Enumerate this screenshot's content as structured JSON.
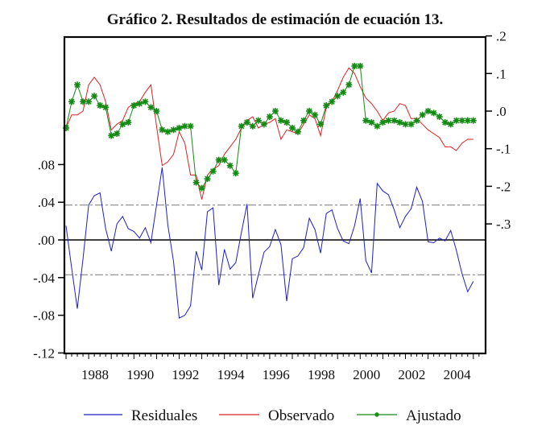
{
  "chart_data": {
    "type": "line",
    "title": "Gráfico 2. Resultados de estimación de ecuación 13.",
    "xlabel": "",
    "frequency": "quarterly",
    "start": "1987Q1",
    "x_ticks": [
      "1988",
      "1990",
      "1992",
      "1994",
      "1996",
      "1998",
      "2000",
      "2002",
      "2004"
    ],
    "left_axis": {
      "label": "",
      "range": [
        -0.12,
        0.11
      ],
      "ticks": [
        ".08",
        ".04",
        ".00",
        "-.04",
        "-.08",
        "-.12"
      ],
      "tick_values": [
        0.08,
        0.04,
        0.0,
        -0.04,
        -0.08,
        -0.12
      ],
      "reference_lines": [
        {
          "value": 0.0,
          "style": "solid"
        },
        {
          "value": 0.037,
          "style": "dashed"
        },
        {
          "value": -0.037,
          "style": "dashed"
        }
      ]
    },
    "right_axis": {
      "label": "",
      "range": [
        -0.32,
        0.2
      ],
      "ticks": [
        ".2",
        ".1",
        ".0",
        "-.1",
        "-.2",
        "-.3"
      ],
      "tick_values": [
        0.2,
        0.1,
        0.0,
        -0.1,
        -0.2,
        -0.3
      ]
    },
    "legend": {
      "placement": "bottom",
      "entries": [
        "Residuales",
        "Observado",
        "Ajustado"
      ]
    },
    "series": [
      {
        "name": "Residuales",
        "axis": "left",
        "color": "#1f1fc8",
        "marker": "none",
        "values": [
          0.015,
          -0.03,
          -0.073,
          -0.02,
          0.037,
          0.047,
          0.05,
          0.012,
          -0.012,
          0.017,
          0.025,
          0.012,
          0.009,
          0.002,
          0.013,
          -0.003,
          0.037,
          0.077,
          0.016,
          -0.023,
          -0.083,
          -0.08,
          -0.07,
          -0.012,
          -0.032,
          0.03,
          0.034,
          -0.048,
          -0.01,
          -0.031,
          -0.024,
          0.008,
          0.038,
          -0.062,
          -0.037,
          -0.013,
          -0.007,
          0.011,
          -0.005,
          -0.065,
          -0.02,
          -0.017,
          -0.008,
          0.023,
          0.011,
          -0.014,
          0.028,
          0.032,
          0.012,
          -0.001,
          -0.004,
          0.015,
          0.044,
          -0.022,
          -0.035,
          0.06,
          0.052,
          0.048,
          0.032,
          0.013,
          0.025,
          0.033,
          0.056,
          0.041,
          -0.002,
          -0.003,
          0.002,
          -0.001,
          0.01,
          -0.011,
          -0.036,
          -0.055,
          -0.044
        ]
      },
      {
        "name": "Observado",
        "axis": "right",
        "color": "#e02020",
        "marker": "none",
        "values": [
          -0.045,
          -0.01,
          -0.01,
          0.0,
          0.07,
          0.09,
          0.07,
          0.025,
          -0.05,
          -0.035,
          -0.025,
          0.01,
          0.02,
          0.025,
          0.05,
          0.07,
          -0.04,
          -0.145,
          -0.135,
          -0.115,
          -0.055,
          -0.085,
          -0.17,
          -0.17,
          -0.235,
          -0.17,
          -0.155,
          -0.145,
          -0.115,
          -0.095,
          -0.075,
          -0.045,
          -0.025,
          -0.015,
          -0.045,
          -0.035,
          -0.03,
          -0.02,
          -0.075,
          -0.05,
          -0.055,
          -0.06,
          -0.035,
          -0.01,
          -0.02,
          -0.065,
          0.01,
          0.025,
          0.055,
          0.09,
          0.115,
          0.1,
          0.065,
          0.035,
          0.02,
          0.0,
          -0.025,
          -0.005,
          0.0,
          0.02,
          0.015,
          -0.02,
          -0.02,
          -0.035,
          -0.05,
          -0.06,
          -0.07,
          -0.095,
          -0.095,
          -0.105,
          -0.085,
          -0.075,
          -0.075
        ]
      },
      {
        "name": "Ajustado",
        "axis": "right",
        "color": "#138a13",
        "marker": "star",
        "values": [
          -0.045,
          0.025,
          0.07,
          0.025,
          0.025,
          0.04,
          0.015,
          0.01,
          -0.065,
          -0.06,
          -0.035,
          -0.03,
          0.015,
          0.02,
          0.025,
          0.01,
          0.0,
          -0.05,
          -0.055,
          -0.05,
          -0.045,
          -0.04,
          -0.04,
          -0.19,
          -0.205,
          -0.18,
          -0.16,
          -0.13,
          -0.13,
          -0.145,
          -0.165,
          -0.04,
          -0.03,
          -0.04,
          -0.025,
          -0.035,
          -0.015,
          0.0,
          -0.025,
          -0.03,
          -0.045,
          -0.055,
          -0.025,
          0.0,
          -0.01,
          -0.035,
          0.015,
          0.025,
          0.04,
          0.05,
          0.07,
          0.12,
          0.12,
          -0.025,
          -0.03,
          -0.04,
          -0.03,
          -0.025,
          -0.025,
          -0.03,
          -0.035,
          -0.035,
          -0.025,
          -0.01,
          0.0,
          -0.005,
          -0.015,
          -0.03,
          -0.035,
          -0.025,
          -0.025,
          -0.025,
          -0.025
        ]
      }
    ]
  }
}
